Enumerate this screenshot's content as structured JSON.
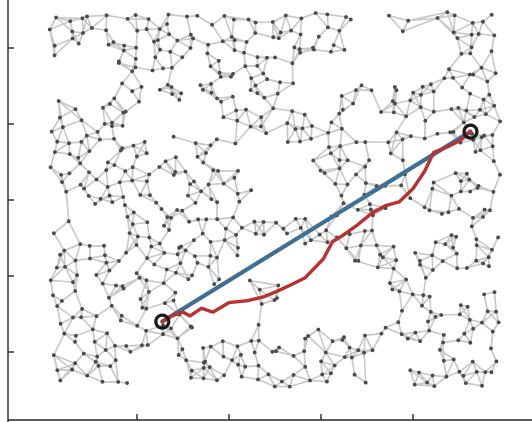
{
  "chart_data": {
    "type": "network",
    "description_visible": false,
    "colors": {
      "edges": "#c9c9c9",
      "nodes": "#4a4a4a",
      "straight_line": "#3f6f95",
      "shortest_path": "#b83232",
      "endpoints": "#1a1a1a",
      "axes": "#262626"
    },
    "domain": {
      "x": [
        0,
        10
      ],
      "y": [
        0,
        10
      ]
    },
    "axes": {
      "show_tick_labels": false,
      "x_ticks": [
        2,
        4,
        6,
        8
      ],
      "y_ticks": [
        1,
        3,
        5,
        7,
        9
      ]
    },
    "endpoints": [
      {
        "name": "start",
        "x": 2.55,
        "y": 1.8
      },
      {
        "name": "end",
        "x": 9.25,
        "y": 6.8
      }
    ],
    "straight_line": [
      [
        2.55,
        1.8
      ],
      [
        9.25,
        6.8
      ]
    ],
    "shortest_path": [
      [
        2.55,
        1.8
      ],
      [
        2.75,
        1.95
      ],
      [
        3.0,
        2.05
      ],
      [
        3.15,
        1.95
      ],
      [
        3.4,
        2.15
      ],
      [
        3.65,
        2.05
      ],
      [
        4.0,
        2.3
      ],
      [
        4.4,
        2.35
      ],
      [
        4.75,
        2.45
      ],
      [
        5.05,
        2.6
      ],
      [
        5.4,
        2.8
      ],
      [
        5.65,
        2.95
      ],
      [
        6.05,
        3.45
      ],
      [
        6.25,
        3.9
      ],
      [
        6.45,
        4.05
      ],
      [
        6.8,
        4.35
      ],
      [
        7.1,
        4.65
      ],
      [
        7.4,
        4.85
      ],
      [
        7.7,
        4.95
      ],
      [
        8.0,
        5.3
      ],
      [
        8.25,
        5.75
      ],
      [
        8.45,
        6.25
      ],
      [
        8.75,
        6.4
      ],
      [
        9.0,
        6.55
      ],
      [
        9.25,
        6.8
      ]
    ]
  }
}
